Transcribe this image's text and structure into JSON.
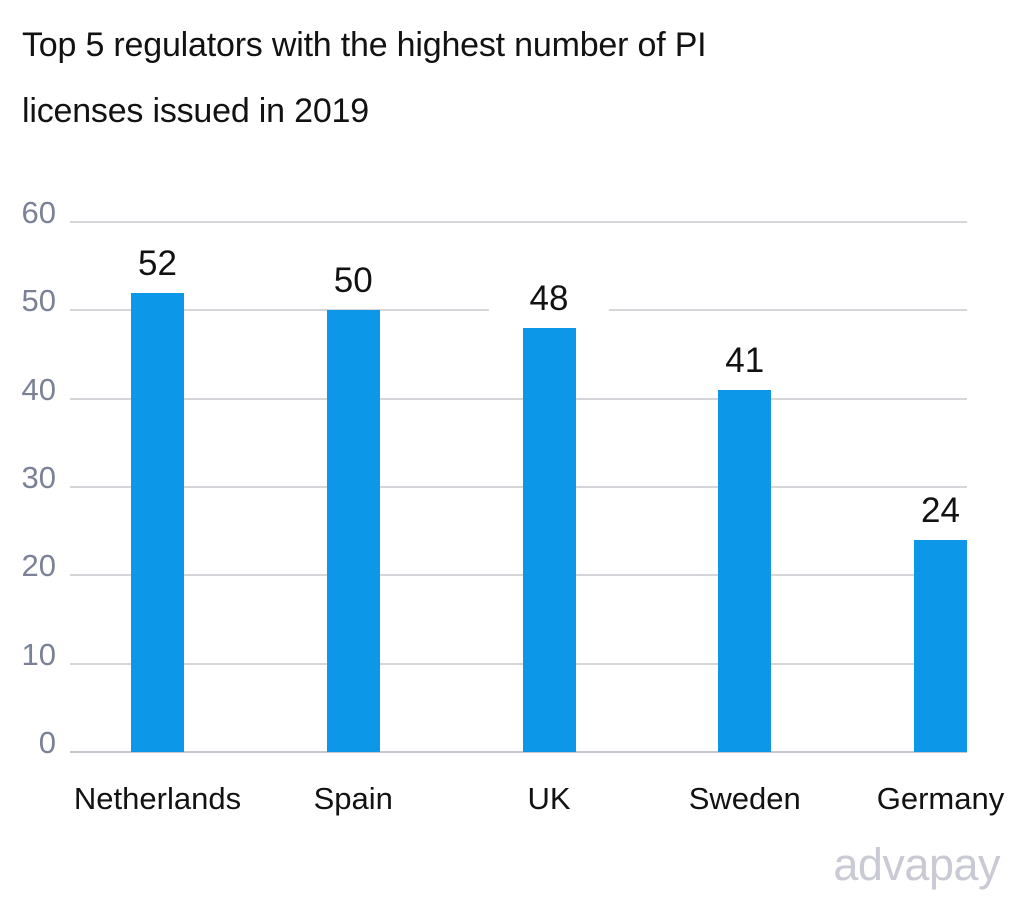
{
  "title": "Top 5 regulators with the highest number of PI licenses issued in 2019",
  "title_lines": [
    "Top 5 regulators with the highest number of PI",
    "licenses issued in 2019"
  ],
  "watermark": "advapay",
  "colors": {
    "bar": "#0C97E9",
    "gridline": "#D5D6DA",
    "axis_baseline": "#C4C7CE",
    "ytick_label": "#7B8196",
    "text": "#121212",
    "watermark": "#C9CAD3",
    "background": "#FFFFFF"
  },
  "chart_data": {
    "type": "bar",
    "title": "Top 5 regulators with the highest number of PI licenses issued in 2019",
    "categories": [
      "Netherlands",
      "Spain",
      "UK",
      "Sweden",
      "Germany"
    ],
    "values": [
      52,
      50,
      48,
      41,
      24
    ],
    "data_labels": [
      "52",
      "50",
      "48",
      "41",
      "24"
    ],
    "xlabel": "",
    "ylabel": "",
    "ylim": [
      0,
      60
    ],
    "yticks": [
      0,
      10,
      20,
      30,
      40,
      50,
      60
    ],
    "grid": true,
    "legend": false,
    "bar_color": "#0C97E9"
  }
}
